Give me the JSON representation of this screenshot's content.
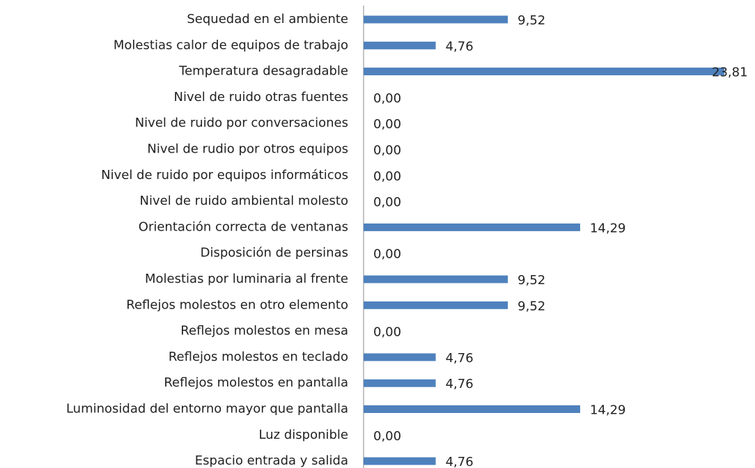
{
  "chart_data": {
    "type": "bar",
    "orientation": "horizontal",
    "color": "#4f81bd",
    "categories": [
      "Sequedad en el ambiente",
      "Molestias calor de equipos de trabajo",
      "Temperatura desagradable",
      "Nivel de ruido otras fuentes",
      "Nivel de ruido por conversaciones",
      "Nivel de rudio por otros equipos",
      "Nivel de ruido por equipos informáticos",
      "Nivel de ruido ambiental molesto",
      "Orientación correcta de ventanas",
      "Disposición de persinas",
      "Molestias por luminaria al frente",
      "Reflejos molestos en otro elemento",
      "Reflejos molestos en mesa",
      "Reflejos molestos en teclado",
      "Reflejos molestos en pantalla",
      "Luminosidad del entorno mayor que pantalla",
      "Luz disponible",
      "Espacio entrada y salida"
    ],
    "values": [
      9.52,
      4.76,
      23.81,
      0,
      0,
      0,
      0,
      0,
      14.29,
      0,
      9.52,
      9.52,
      0,
      4.76,
      4.76,
      14.29,
      0,
      4.76
    ],
    "value_labels": [
      "9,52",
      "4,76",
      "23,81",
      "0,00",
      "0,00",
      "0,00",
      "0,00",
      "0,00",
      "14,29",
      "0,00",
      "9,52",
      "9,52",
      "0,00",
      "4,76",
      "4,76",
      "14,29",
      "0,00",
      "4,76"
    ]
  }
}
